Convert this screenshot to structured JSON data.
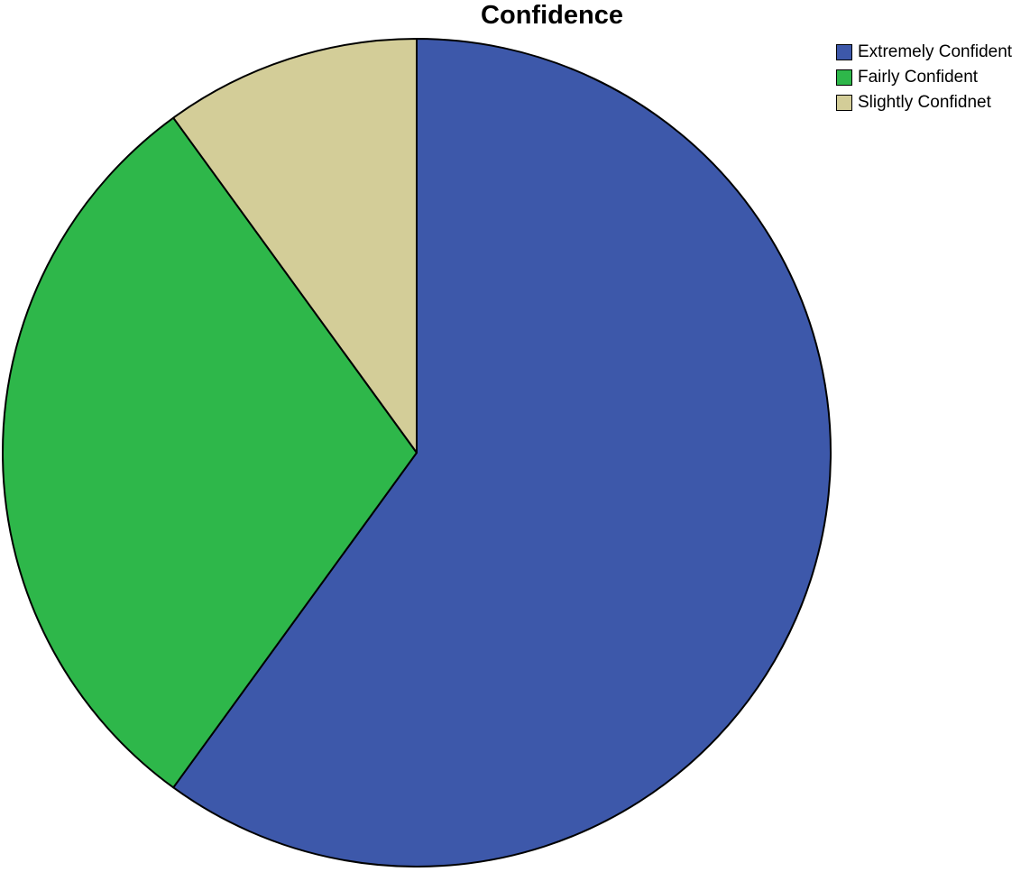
{
  "chart_data": {
    "type": "pie",
    "title": "Confidence",
    "legend_position": "top-right",
    "series": [
      {
        "name": "Extremely Confident",
        "value": 60,
        "color": "#3d58aa"
      },
      {
        "name": "Fairly Confident",
        "value": 30,
        "color": "#2eb74a"
      },
      {
        "name": "Slightly Confidnet",
        "value": 10,
        "color": "#d3cd98"
      }
    ]
  }
}
